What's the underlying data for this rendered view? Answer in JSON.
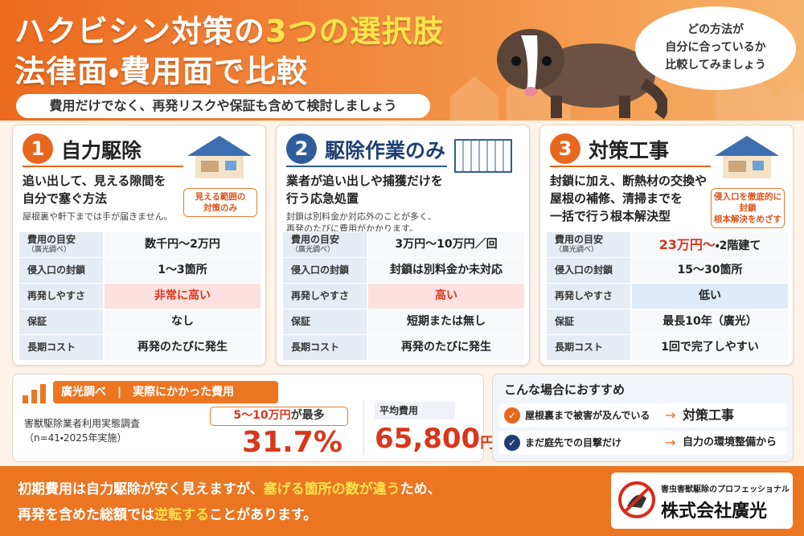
{
  "header": {
    "title_line1": [
      "ハクビシン対策の",
      "3つの選択肢"
    ],
    "title_line2": "法律面・費用面で比較",
    "subtitle": "費用だけでなく、再発リスクや保証も含めて検討しましょう",
    "bubble": [
      "どの方法が",
      "自分に合っているか",
      "比較してみましょう"
    ]
  },
  "cards": [
    {
      "number": "1",
      "title": "自力駆除",
      "color": "#e8671e",
      "desc": [
        "追い出して、見える隙間を",
        "自分で塞ぐ方法"
      ],
      "note": [
        "屋根裏や軒下までは手が届きません。"
      ],
      "badge": [
        "見える範囲の",
        "対策のみ"
      ],
      "highlight_row": 2,
      "highlight_color": "#fde0e0",
      "rows": [
        {
          "label": "費用の目安",
          "sublabel": "（廣光調べ）",
          "value": "数千円〜2万円"
        },
        {
          "label": "侵入口の封鎖",
          "value": "1〜3箇所"
        },
        {
          "label": "再発しやすさ",
          "value": "非常に高い",
          "value_color": "#d9361b"
        },
        {
          "label": "保証",
          "value": "なし"
        },
        {
          "label": "長期コスト",
          "value": "再発のたびに発生"
        }
      ]
    },
    {
      "number": "2",
      "title": "駆除作業のみ",
      "color": "#2f5d9c",
      "desc": [
        "業者が追い出しや捕獲だけを",
        "行う応急処置"
      ],
      "note": [
        "封鎖は別料金か対応外のことが多く、",
        "再発のたびに費用がかかります。"
      ],
      "badge": [],
      "highlight_row": 2,
      "highlight_color": "#fde0e0",
      "rows": [
        {
          "label": "費用の目安",
          "sublabel": "（廣光調べ）",
          "value": "3万円〜10万円／回"
        },
        {
          "label": "侵入口の封鎖",
          "value": "封鎖は別料金か未対応"
        },
        {
          "label": "再発しやすさ",
          "value": "高い",
          "value_color": "#d9361b"
        },
        {
          "label": "保証",
          "value": "短期または無し"
        },
        {
          "label": "長期コスト",
          "value": "再発のたびに発生"
        }
      ]
    },
    {
      "number": "3",
      "title": "対策工事",
      "color": "#e8671e",
      "desc": [
        "封鎖に加え、断熱材の交換や",
        "屋根の補修、清掃までを",
        "一括で行う根本解決型"
      ],
      "note": [],
      "badge": [
        "侵入口を徹底的に封鎖",
        "根本解決をめざす"
      ],
      "highlight_row": 2,
      "highlight_color": "#dceafa",
      "rows": [
        {
          "label": "費用の目安",
          "sublabel": "（廣光調べ）",
          "accent": "23万円〜",
          "value": "・2階建て"
        },
        {
          "label": "侵入口の封鎖",
          "value": "15〜30箇所"
        },
        {
          "label": "再発しやすさ",
          "value": "低い"
        },
        {
          "label": "保証",
          "value": "最長10年（廣光）"
        },
        {
          "label": "長期コスト",
          "value": "1回で完了しやすい"
        }
      ]
    }
  ],
  "survey": {
    "source": "廣光調べ",
    "heading": "実際にかかった費用",
    "study": "害獣駆除業者利用実態調査",
    "sample": "（n=41・2025年実施）",
    "mode_range": "5〜10万円",
    "mode_suffix": "が最多",
    "share": "31.7%",
    "avg_label": "平均費用",
    "avg_value": "65,800",
    "avg_unit": "円"
  },
  "recommend": {
    "title": "こんな場合におすすめ",
    "rows": [
      {
        "case": "屋根裏まで被害が及んでいる",
        "answer": "対策工事",
        "icon_color": "#e8671e"
      },
      {
        "case": "まだ庭先での目撃だけ",
        "answer": "自力の環境整備から",
        "icon_color": "#1f3f73"
      }
    ]
  },
  "footer": {
    "lines": [
      [
        {
          "text": "初期費用は自力駆除が安く見えますが、"
        },
        {
          "text": "塞げる箇所の数が違う",
          "highlight": true
        },
        {
          "text": "ため、"
        }
      ],
      [
        {
          "text": "再発を含めた総額では"
        },
        {
          "text": "逆転する",
          "highlight": true
        },
        {
          "text": "ことがあります。"
        }
      ]
    ],
    "logo_tagline": "害虫害獣駆除のプロフェッショナル",
    "logo_name": "株式会社廣光"
  }
}
